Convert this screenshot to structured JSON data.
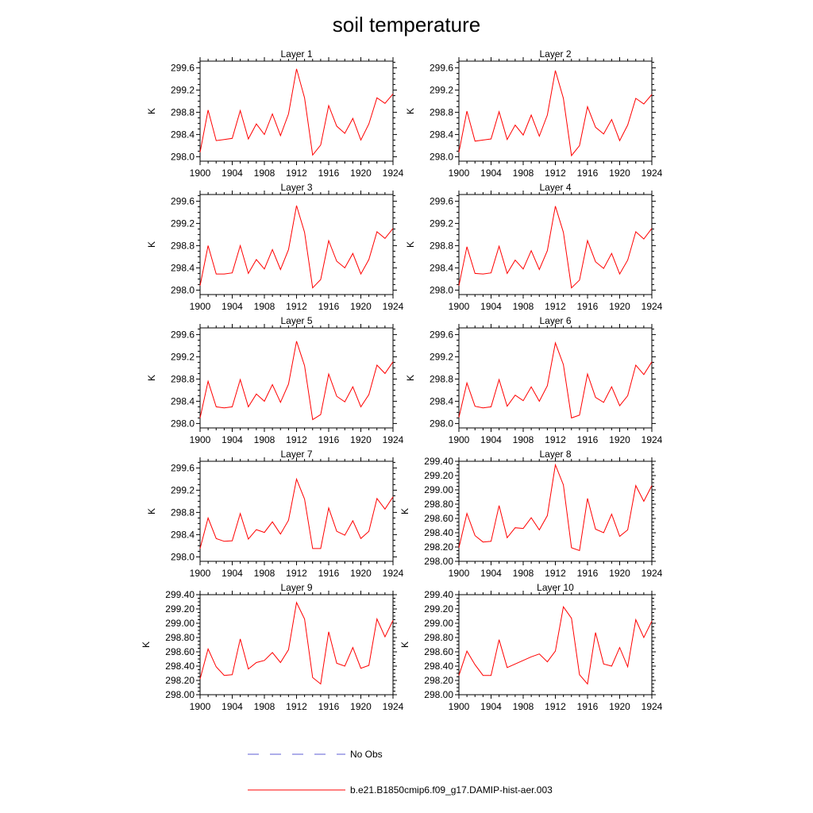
{
  "figure": {
    "title": "soil temperature"
  },
  "legend": {
    "entries": [
      {
        "label": "No Obs",
        "color": "#5c5cd6",
        "style": "dashed"
      },
      {
        "label": "b.e21.B1850cmip6.f09_g17.DAMIP-hist-aer.003",
        "color": "#ff0000",
        "style": "solid"
      }
    ]
  },
  "chart_data": [
    {
      "type": "line",
      "title": "Layer 1",
      "ylabel": "K",
      "xlim": [
        1900,
        1924
      ],
      "ylim": [
        297.92,
        299.72
      ],
      "xticks": [
        "1900",
        "1904",
        "1908",
        "1912",
        "1916",
        "1920",
        "1924"
      ],
      "yticks": [
        "298.0",
        "298.4",
        "298.8",
        "299.2",
        "299.6"
      ],
      "series": [
        {
          "color": "#ff0000",
          "x": [
            1900,
            1901,
            1902,
            1903,
            1904,
            1905,
            1906,
            1907,
            1908,
            1909,
            1910,
            1911,
            1912,
            1913,
            1914,
            1915,
            1916,
            1917,
            1918,
            1919,
            1920,
            1921,
            1922,
            1923,
            1924
          ],
          "values": [
            298.08,
            298.84,
            298.29,
            298.31,
            298.33,
            298.83,
            298.32,
            298.59,
            298.4,
            298.77,
            298.38,
            298.77,
            299.58,
            299.06,
            298.03,
            298.21,
            298.92,
            298.55,
            298.42,
            298.69,
            298.3,
            298.59,
            299.06,
            298.96,
            299.13
          ]
        }
      ]
    },
    {
      "type": "line",
      "title": "Layer 2",
      "ylabel": "K",
      "xlim": [
        1900,
        1924
      ],
      "ylim": [
        297.92,
        299.72
      ],
      "xticks": [
        "1900",
        "1904",
        "1908",
        "1912",
        "1916",
        "1920",
        "1924"
      ],
      "yticks": [
        "298.0",
        "298.4",
        "298.8",
        "299.2",
        "299.6"
      ],
      "series": [
        {
          "color": "#ff0000",
          "x": [
            1900,
            1901,
            1902,
            1903,
            1904,
            1905,
            1906,
            1907,
            1908,
            1909,
            1910,
            1911,
            1912,
            1913,
            1914,
            1915,
            1916,
            1917,
            1918,
            1919,
            1920,
            1921,
            1922,
            1923,
            1924
          ],
          "values": [
            298.08,
            298.82,
            298.28,
            298.3,
            298.32,
            298.81,
            298.31,
            298.57,
            298.39,
            298.75,
            298.37,
            298.75,
            299.55,
            299.05,
            298.02,
            298.2,
            298.9,
            298.53,
            298.41,
            298.67,
            298.29,
            298.57,
            299.05,
            298.95,
            299.12
          ]
        }
      ]
    },
    {
      "type": "line",
      "title": "Layer 3",
      "ylabel": "K",
      "xlim": [
        1900,
        1924
      ],
      "ylim": [
        297.92,
        299.72
      ],
      "xticks": [
        "1900",
        "1904",
        "1908",
        "1912",
        "1916",
        "1920",
        "1924"
      ],
      "yticks": [
        "298.0",
        "298.4",
        "298.8",
        "299.2",
        "299.6"
      ],
      "series": [
        {
          "color": "#ff0000",
          "x": [
            1900,
            1901,
            1902,
            1903,
            1904,
            1905,
            1906,
            1907,
            1908,
            1909,
            1910,
            1911,
            1912,
            1913,
            1914,
            1915,
            1916,
            1917,
            1918,
            1919,
            1920,
            1921,
            1922,
            1923,
            1924
          ],
          "values": [
            298.08,
            298.8,
            298.29,
            298.29,
            298.31,
            298.8,
            298.3,
            298.55,
            298.38,
            298.73,
            298.37,
            298.73,
            299.52,
            299.04,
            298.04,
            298.19,
            298.89,
            298.52,
            298.4,
            298.66,
            298.29,
            298.55,
            299.05,
            298.93,
            299.11
          ]
        }
      ]
    },
    {
      "type": "line",
      "title": "Layer 4",
      "ylabel": "K",
      "xlim": [
        1900,
        1924
      ],
      "ylim": [
        297.92,
        299.72
      ],
      "xticks": [
        "1900",
        "1904",
        "1908",
        "1912",
        "1916",
        "1920",
        "1924"
      ],
      "yticks": [
        "298.0",
        "298.4",
        "298.8",
        "299.2",
        "299.6"
      ],
      "series": [
        {
          "color": "#ff0000",
          "x": [
            1900,
            1901,
            1902,
            1903,
            1904,
            1905,
            1906,
            1907,
            1908,
            1909,
            1910,
            1911,
            1912,
            1913,
            1914,
            1915,
            1916,
            1917,
            1918,
            1919,
            1920,
            1921,
            1922,
            1923,
            1924
          ],
          "values": [
            298.08,
            298.78,
            298.3,
            298.29,
            298.31,
            298.79,
            298.3,
            298.54,
            298.38,
            298.71,
            298.37,
            298.71,
            299.51,
            299.04,
            298.04,
            298.18,
            298.89,
            298.51,
            298.39,
            298.66,
            298.29,
            298.54,
            299.05,
            298.92,
            299.11
          ]
        }
      ]
    },
    {
      "type": "line",
      "title": "Layer 5",
      "ylabel": "K",
      "xlim": [
        1900,
        1924
      ],
      "ylim": [
        297.92,
        299.72
      ],
      "xticks": [
        "1900",
        "1904",
        "1908",
        "1912",
        "1916",
        "1920",
        "1924"
      ],
      "yticks": [
        "298.0",
        "298.4",
        "298.8",
        "299.2",
        "299.6"
      ],
      "series": [
        {
          "color": "#ff0000",
          "x": [
            1900,
            1901,
            1902,
            1903,
            1904,
            1905,
            1906,
            1907,
            1908,
            1909,
            1910,
            1911,
            1912,
            1913,
            1914,
            1915,
            1916,
            1917,
            1918,
            1919,
            1920,
            1921,
            1922,
            1923,
            1924
          ],
          "values": [
            298.1,
            298.76,
            298.3,
            298.28,
            298.3,
            298.79,
            298.3,
            298.53,
            298.4,
            298.7,
            298.38,
            298.71,
            299.48,
            299.04,
            298.07,
            298.16,
            298.89,
            298.49,
            298.39,
            298.66,
            298.3,
            298.52,
            299.05,
            298.9,
            299.11
          ]
        }
      ]
    },
    {
      "type": "line",
      "title": "Layer 6",
      "ylabel": "K",
      "xlim": [
        1900,
        1924
      ],
      "ylim": [
        297.92,
        299.72
      ],
      "xticks": [
        "1900",
        "1904",
        "1908",
        "1912",
        "1916",
        "1920",
        "1924"
      ],
      "yticks": [
        "298.0",
        "298.4",
        "298.8",
        "299.2",
        "299.6"
      ],
      "series": [
        {
          "color": "#ff0000",
          "x": [
            1900,
            1901,
            1902,
            1903,
            1904,
            1905,
            1906,
            1907,
            1908,
            1909,
            1910,
            1911,
            1912,
            1913,
            1914,
            1915,
            1916,
            1917,
            1918,
            1919,
            1920,
            1921,
            1922,
            1923,
            1924
          ],
          "values": [
            298.11,
            298.73,
            298.31,
            298.28,
            298.3,
            298.79,
            298.31,
            298.51,
            298.41,
            298.66,
            298.4,
            298.68,
            299.45,
            299.06,
            298.1,
            298.15,
            298.89,
            298.47,
            298.38,
            298.66,
            298.32,
            298.5,
            299.05,
            298.88,
            299.11
          ]
        }
      ]
    },
    {
      "type": "line",
      "title": "Layer 7",
      "ylabel": "K",
      "xlim": [
        1900,
        1924
      ],
      "ylim": [
        297.92,
        299.72
      ],
      "xticks": [
        "1900",
        "1904",
        "1908",
        "1912",
        "1916",
        "1920",
        "1924"
      ],
      "yticks": [
        "298.0",
        "298.4",
        "298.8",
        "299.2",
        "299.6"
      ],
      "series": [
        {
          "color": "#ff0000",
          "x": [
            1900,
            1901,
            1902,
            1903,
            1904,
            1905,
            1906,
            1907,
            1908,
            1909,
            1910,
            1911,
            1912,
            1913,
            1914,
            1915,
            1916,
            1917,
            1918,
            1919,
            1920,
            1921,
            1922,
            1923,
            1924
          ],
          "values": [
            298.15,
            298.7,
            298.33,
            298.28,
            298.29,
            298.78,
            298.32,
            298.49,
            298.44,
            298.63,
            298.41,
            298.66,
            299.4,
            299.04,
            298.15,
            298.15,
            298.88,
            298.46,
            298.39,
            298.65,
            298.33,
            298.46,
            299.05,
            298.86,
            299.08
          ]
        }
      ]
    },
    {
      "type": "line",
      "title": "Layer 8",
      "ylabel": "K",
      "xlim": [
        1900,
        1924
      ],
      "ylim": [
        298.0,
        299.4
      ],
      "xticks": [
        "1900",
        "1904",
        "1908",
        "1912",
        "1916",
        "1920",
        "1924"
      ],
      "yticks": [
        "298.00",
        "298.20",
        "298.40",
        "298.60",
        "298.80",
        "299.00",
        "299.20",
        "299.40"
      ],
      "series": [
        {
          "color": "#ff0000",
          "x": [
            1900,
            1901,
            1902,
            1903,
            1904,
            1905,
            1906,
            1907,
            1908,
            1909,
            1910,
            1911,
            1912,
            1913,
            1914,
            1915,
            1916,
            1917,
            1918,
            1919,
            1920,
            1921,
            1922,
            1923,
            1924
          ],
          "values": [
            298.19,
            298.67,
            298.36,
            298.27,
            298.28,
            298.78,
            298.33,
            298.47,
            298.46,
            298.61,
            298.44,
            298.64,
            299.35,
            299.07,
            298.19,
            298.15,
            298.88,
            298.45,
            298.4,
            298.66,
            298.35,
            298.44,
            299.06,
            298.84,
            299.06
          ]
        }
      ]
    },
    {
      "type": "line",
      "title": "Layer 9",
      "ylabel": "K",
      "xlim": [
        1900,
        1924
      ],
      "ylim": [
        298.0,
        299.4
      ],
      "xticks": [
        "1900",
        "1904",
        "1908",
        "1912",
        "1916",
        "1920",
        "1924"
      ],
      "yticks": [
        "298.00",
        "298.20",
        "298.40",
        "298.60",
        "298.80",
        "299.00",
        "299.20",
        "299.40"
      ],
      "series": [
        {
          "color": "#ff0000",
          "x": [
            1900,
            1901,
            1902,
            1903,
            1904,
            1905,
            1906,
            1907,
            1908,
            1909,
            1910,
            1911,
            1912,
            1913,
            1914,
            1915,
            1916,
            1917,
            1918,
            1919,
            1920,
            1921,
            1922,
            1923,
            1924
          ],
          "values": [
            298.22,
            298.64,
            298.39,
            298.27,
            298.28,
            298.78,
            298.36,
            298.45,
            298.48,
            298.59,
            298.45,
            298.63,
            299.29,
            299.06,
            298.24,
            298.15,
            298.88,
            298.44,
            298.4,
            298.66,
            298.37,
            298.41,
            299.06,
            298.81,
            299.04
          ]
        }
      ]
    },
    {
      "type": "line",
      "title": "Layer 10",
      "ylabel": "K",
      "xlim": [
        1900,
        1924
      ],
      "ylim": [
        298.0,
        299.4
      ],
      "xticks": [
        "1900",
        "1904",
        "1908",
        "1912",
        "1916",
        "1920",
        "1924"
      ],
      "yticks": [
        "298.00",
        "298.20",
        "298.40",
        "298.60",
        "298.80",
        "299.00",
        "299.20",
        "299.40"
      ],
      "series": [
        {
          "color": "#ff0000",
          "x": [
            1900,
            1901,
            1902,
            1903,
            1904,
            1905,
            1906,
            1907,
            1908,
            1909,
            1910,
            1911,
            1912,
            1913,
            1914,
            1915,
            1916,
            1917,
            1918,
            1919,
            1920,
            1921,
            1922,
            1923,
            1924
          ],
          "values": [
            298.27,
            298.61,
            298.42,
            298.27,
            298.27,
            298.77,
            298.38,
            298.43,
            298.48,
            298.53,
            298.57,
            298.46,
            298.61,
            299.23,
            299.07,
            298.28,
            298.15,
            298.87,
            298.43,
            298.4,
            298.66,
            298.39,
            299.05,
            298.8,
            299.03
          ]
        }
      ]
    }
  ]
}
